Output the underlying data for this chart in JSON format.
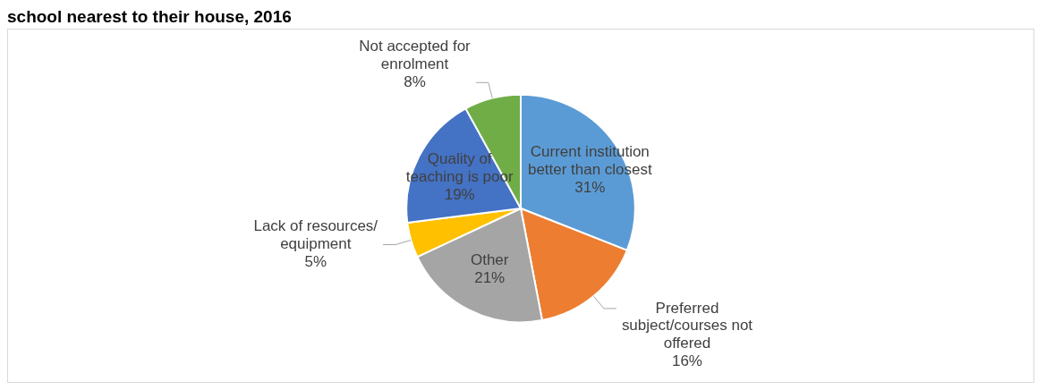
{
  "chart_data": {
    "type": "pie",
    "title": "school nearest to their house, 2016",
    "categories": [
      "Current institution better than closest",
      "Preferred subject/courses not offered",
      "Other",
      "Lack of resources/ equipment",
      "Quality of teaching is poor",
      "Not accepted for enrolment"
    ],
    "values": [
      31,
      16,
      21,
      5,
      19,
      8
    ],
    "value_labels": [
      "31%",
      "16%",
      "21%",
      "5%",
      "19%",
      "8%"
    ],
    "colors": [
      "#5b9bd5",
      "#ed7d31",
      "#a5a5a5",
      "#ffc000",
      "#4472c4",
      "#70ad47"
    ],
    "legend": false
  }
}
